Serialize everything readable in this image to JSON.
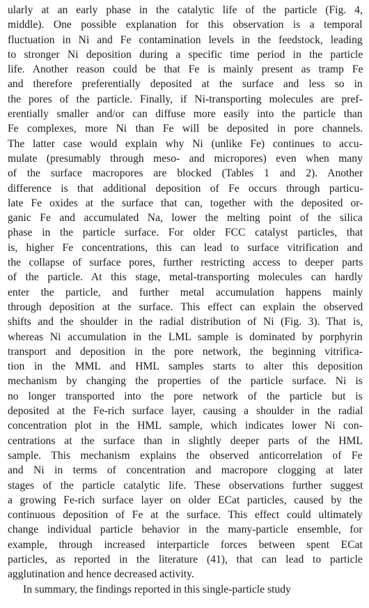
{
  "paragraph_1_lines": [
    "ularly at an early phase in the catalytic life of the particle (Fig. 4,",
    "middle). One possible explanation for this observation is a temporal",
    "fluctuation in Ni and Fe contamination levels in the feedstock, leading",
    "to stronger Ni deposition during a specific time period in the particle",
    "life. Another reason could be that Fe is mainly present as tramp Fe",
    "and therefore preferentially deposited at the surface and less so in",
    "the pores of the particle. Finally, if Ni-transporting molecules are pref-",
    "erentially smaller and/or can diffuse more easily into the particle than",
    "Fe complexes, more Ni than Fe will be deposited in pore channels.",
    "The latter case would explain why Ni (unlike Fe) continues to accu-",
    "mulate (presumably through meso- and micropores) even when many",
    "of the surface macropores are blocked (Tables 1 and 2). Another",
    "difference is that additional deposition of Fe occurs through particu-",
    "late Fe oxides at the surface that can, together with the deposited or-",
    "ganic Fe and accumulated Na, lower the melting point of the silica",
    "phase in the particle surface. For older FCC catalyst particles, that",
    "is, higher Fe concentrations, this can lead to surface vitrification and",
    "the collapse of surface pores, further restricting access to deeper parts",
    "of the particle. At this stage, metal-transporting molecules can hardly",
    "enter the particle, and further metal accumulation happens mainly",
    "through deposition at the surface. This effect can explain the observed",
    "shifts and the shoulder in the radial distribution of Ni (Fig. 3). That is,",
    "whereas Ni accumulation in the LML sample is dominated by porphyrin",
    "transport and deposition in the pore network, the beginning vitrifica-",
    "tion in the MML and HML samples starts to alter this deposition",
    "mechanism by changing the properties of the particle surface. Ni is",
    "no longer transported into the pore network of the particle but is",
    "deposited at the Fe-rich surface layer, causing a shoulder in the radial",
    "concentration plot in the HML sample, which indicates lower Ni con-",
    "centrations at the surface than in slightly deeper parts of the HML",
    "sample. This mechanism explains the observed anticorrelation of Fe",
    "and Ni in terms of concentration and macropore clogging at later",
    "stages of the particle catalytic life. These observations further suggest",
    "a growing Fe-rich surface layer on older ECat particles, caused by the",
    "continuous deposition of Fe at the surface. This effect could ultimately",
    "change individual particle behavior in the many-particle ensemble, for",
    "example, through increased interparticle forces between spent ECat",
    "particles, as reported in the literature (41), that can lead to particle",
    "agglutination and hence decreased activity."
  ],
  "paragraph_2_lines": [
    "In summary, the findings reported in this single-particle study"
  ]
}
